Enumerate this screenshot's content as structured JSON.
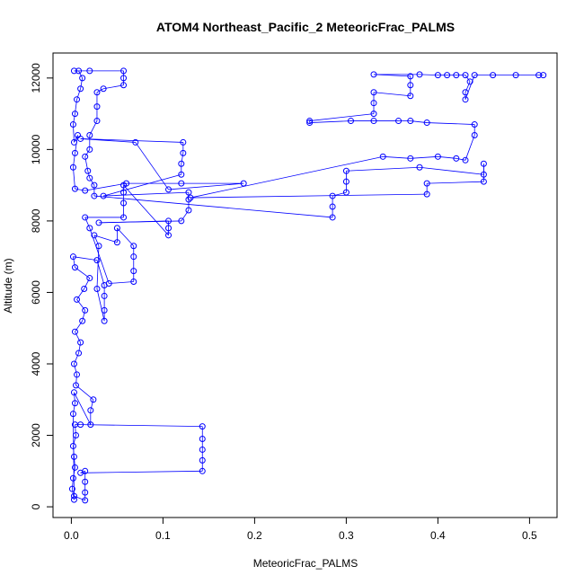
{
  "chart_data": {
    "type": "scatter",
    "title": "ATOM4 Northeast_Pacific_2 MeteoricFrac_PALMS",
    "xlabel": "MeteoricFrac_PALMS",
    "ylabel": "Altitude (m)",
    "xlim": [
      -0.02,
      0.53
    ],
    "ylim": [
      -300,
      12700
    ],
    "xticks": [
      0.0,
      0.1,
      0.2,
      0.3,
      0.4,
      0.5
    ],
    "xtick_labels": [
      "0.0",
      "0.1",
      "0.2",
      "0.3",
      "0.4",
      "0.5"
    ],
    "yticks": [
      0,
      2000,
      4000,
      6000,
      8000,
      10000,
      12000
    ],
    "ytick_labels": [
      "0",
      "2000",
      "4000",
      "6000",
      "8000",
      "10000",
      "12000"
    ],
    "grid": false,
    "legend": "none",
    "series_color": "#0000ff",
    "marker": "open-circle",
    "connect_points": true,
    "points": [
      [
        0.003,
        200
      ],
      [
        0.001,
        500
      ],
      [
        0.002,
        800
      ],
      [
        0.004,
        1100
      ],
      [
        0.003,
        1400
      ],
      [
        0.002,
        1700
      ],
      [
        0.005,
        2000
      ],
      [
        0.004,
        2300
      ],
      [
        0.01,
        2300
      ],
      [
        0.143,
        2250
      ],
      [
        0.143,
        1900
      ],
      [
        0.143,
        1600
      ],
      [
        0.143,
        1300
      ],
      [
        0.143,
        1000
      ],
      [
        0.01,
        950
      ],
      [
        0.015,
        1000
      ],
      [
        0.015,
        700
      ],
      [
        0.015,
        400
      ],
      [
        0.015,
        180
      ],
      [
        0.003,
        300
      ],
      [
        0.002,
        2600
      ],
      [
        0.004,
        2900
      ],
      [
        0.003,
        3200
      ],
      [
        0.021,
        2300
      ],
      [
        0.021,
        2700
      ],
      [
        0.024,
        3000
      ],
      [
        0.005,
        3400
      ],
      [
        0.006,
        3700
      ],
      [
        0.003,
        4000
      ],
      [
        0.008,
        4300
      ],
      [
        0.01,
        4600
      ],
      [
        0.004,
        4900
      ],
      [
        0.012,
        5200
      ],
      [
        0.015,
        5500
      ],
      [
        0.006,
        5800
      ],
      [
        0.014,
        6100
      ],
      [
        0.02,
        6400
      ],
      [
        0.004,
        6700
      ],
      [
        0.002,
        7000
      ],
      [
        0.028,
        6900
      ],
      [
        0.036,
        6200
      ],
      [
        0.036,
        5900
      ],
      [
        0.036,
        5500
      ],
      [
        0.036,
        5200
      ],
      [
        0.028,
        6100
      ],
      [
        0.03,
        7300
      ],
      [
        0.025,
        7600
      ],
      [
        0.05,
        7400
      ],
      [
        0.05,
        7800
      ],
      [
        0.068,
        7300
      ],
      [
        0.068,
        7000
      ],
      [
        0.068,
        6600
      ],
      [
        0.068,
        6300
      ],
      [
        0.041,
        6250
      ],
      [
        0.02,
        7800
      ],
      [
        0.015,
        8100
      ],
      [
        0.057,
        8100
      ],
      [
        0.057,
        8500
      ],
      [
        0.057,
        8800
      ],
      [
        0.057,
        9000
      ],
      [
        0.106,
        7600
      ],
      [
        0.106,
        7800
      ],
      [
        0.106,
        8000
      ],
      [
        0.03,
        7950
      ],
      [
        0.12,
        8000
      ],
      [
        0.128,
        8300
      ],
      [
        0.128,
        8600
      ],
      [
        0.128,
        8800
      ],
      [
        0.035,
        8700
      ],
      [
        0.12,
        9300
      ],
      [
        0.12,
        9600
      ],
      [
        0.122,
        9900
      ],
      [
        0.122,
        10200
      ],
      [
        0.01,
        10300
      ],
      [
        0.07,
        10200
      ],
      [
        0.106,
        8880
      ],
      [
        0.188,
        9050
      ],
      [
        0.12,
        9050
      ],
      [
        0.06,
        9050
      ],
      [
        0.015,
        8850
      ],
      [
        0.004,
        8900
      ],
      [
        0.002,
        9500
      ],
      [
        0.004,
        9900
      ],
      [
        0.007,
        10400
      ],
      [
        0.003,
        10200
      ],
      [
        0.002,
        10700
      ],
      [
        0.004,
        11000
      ],
      [
        0.006,
        11400
      ],
      [
        0.01,
        11700
      ],
      [
        0.012,
        12000
      ],
      [
        0.008,
        12200
      ],
      [
        0.003,
        12200
      ],
      [
        0.02,
        12200
      ],
      [
        0.057,
        12200
      ],
      [
        0.057,
        12000
      ],
      [
        0.057,
        11800
      ],
      [
        0.035,
        11700
      ],
      [
        0.028,
        11600
      ],
      [
        0.028,
        11200
      ],
      [
        0.028,
        10800
      ],
      [
        0.02,
        10400
      ],
      [
        0.02,
        10000
      ],
      [
        0.015,
        9800
      ],
      [
        0.018,
        9400
      ],
      [
        0.02,
        9200
      ],
      [
        0.025,
        9000
      ],
      [
        0.025,
        8700
      ],
      [
        0.285,
        8100
      ],
      [
        0.285,
        8400
      ],
      [
        0.285,
        8700
      ],
      [
        0.3,
        8800
      ],
      [
        0.3,
        9100
      ],
      [
        0.3,
        9400
      ],
      [
        0.38,
        9500
      ],
      [
        0.45,
        9300
      ],
      [
        0.45,
        9600
      ],
      [
        0.45,
        9100
      ],
      [
        0.388,
        9050
      ],
      [
        0.388,
        8750
      ],
      [
        0.13,
        8650
      ],
      [
        0.34,
        9800
      ],
      [
        0.37,
        9750
      ],
      [
        0.4,
        9800
      ],
      [
        0.42,
        9750
      ],
      [
        0.43,
        9700
      ],
      [
        0.44,
        10400
      ],
      [
        0.44,
        10700
      ],
      [
        0.388,
        10750
      ],
      [
        0.37,
        10800
      ],
      [
        0.357,
        10800
      ],
      [
        0.33,
        10800
      ],
      [
        0.305,
        10800
      ],
      [
        0.26,
        10750
      ],
      [
        0.26,
        10800
      ],
      [
        0.33,
        11000
      ],
      [
        0.33,
        11300
      ],
      [
        0.33,
        11600
      ],
      [
        0.37,
        11500
      ],
      [
        0.37,
        11800
      ],
      [
        0.37,
        12050
      ],
      [
        0.33,
        12100
      ],
      [
        0.38,
        12100
      ],
      [
        0.4,
        12080
      ],
      [
        0.41,
        12080
      ],
      [
        0.42,
        12080
      ],
      [
        0.43,
        12080
      ],
      [
        0.435,
        11900
      ],
      [
        0.43,
        11600
      ],
      [
        0.43,
        11400
      ],
      [
        0.44,
        12080
      ],
      [
        0.46,
        12080
      ],
      [
        0.485,
        12080
      ],
      [
        0.51,
        12080
      ],
      [
        0.515,
        12080
      ]
    ]
  }
}
